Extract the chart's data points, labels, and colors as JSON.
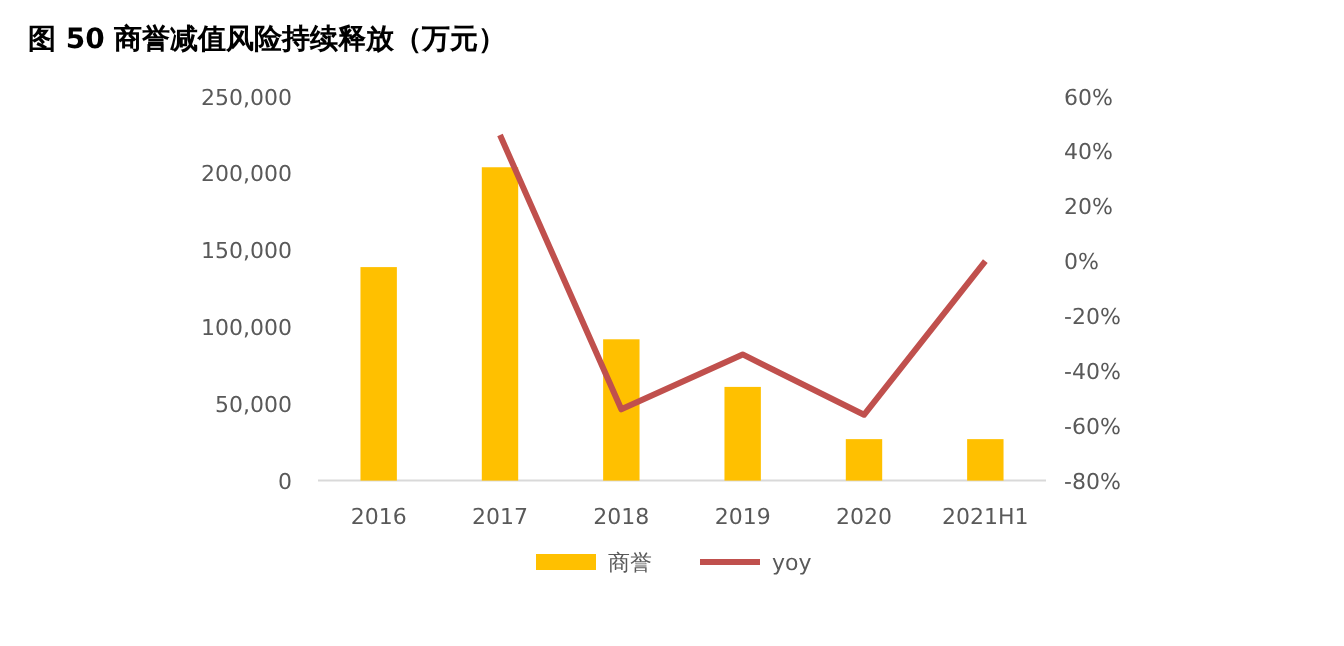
{
  "chart_data": {
    "type": "bar",
    "title": "图 50 商誉减值风险持续释放（万元）",
    "categories": [
      "2016",
      "2017",
      "2018",
      "2019",
      "2020",
      "2021H1"
    ],
    "series": [
      {
        "name": "商誉",
        "color": "#ffc000",
        "values": [
          139000,
          204000,
          92000,
          61000,
          27000,
          27000
        ]
      },
      {
        "name": "yoy",
        "type": "line",
        "axis": "y2",
        "color": "#c0504d",
        "values": [
          null,
          46,
          -54,
          -34,
          -56,
          0
        ]
      }
    ],
    "ylim": [
      0,
      250000
    ],
    "yticks": [
      {
        "value": 0,
        "label": "0"
      },
      {
        "value": 50000,
        "label": "50,000"
      },
      {
        "value": 100000,
        "label": "100,000"
      },
      {
        "value": 150000,
        "label": "150,000"
      },
      {
        "value": 200000,
        "label": "200,000"
      },
      {
        "value": 250000,
        "label": "250,000"
      }
    ],
    "y2lim": [
      -80,
      60
    ],
    "y2ticks": [
      {
        "value": -80,
        "label": "-80%"
      },
      {
        "value": -60,
        "label": "-60%"
      },
      {
        "value": -40,
        "label": "-40%"
      },
      {
        "value": -20,
        "label": "-20%"
      },
      {
        "value": 0,
        "label": "0%"
      },
      {
        "value": 20,
        "label": "20%"
      },
      {
        "value": 40,
        "label": "40%"
      },
      {
        "value": 60,
        "label": "60%"
      }
    ],
    "legend": "bottom",
    "grid": false
  }
}
